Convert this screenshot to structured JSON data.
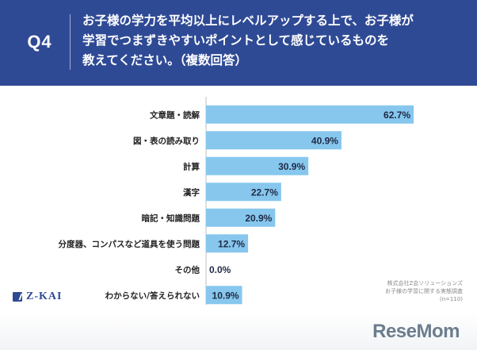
{
  "header": {
    "qnum": "Q4",
    "lines": [
      "お子様の学力を平均以上にレベルアップする上で、お子様が",
      "学習でつまずきやすいポイントとして感じているものを",
      "教えてください。（複数回答）"
    ]
  },
  "colors": {
    "header_bg": "#2f4a95",
    "bar": "#87c7ee"
  },
  "chart_data": {
    "type": "bar",
    "orientation": "horizontal",
    "categories": [
      "文章題・読解",
      "図・表の読み取り",
      "計算",
      "漢字",
      "暗記・知識問題",
      "分度器、コンパスなど道具を使う問題",
      "その他",
      "わからない/答えられない"
    ],
    "values": [
      62.7,
      40.9,
      30.9,
      22.7,
      20.9,
      12.7,
      0.0,
      10.9
    ],
    "value_labels": [
      "62.7%",
      "40.9%",
      "30.9%",
      "22.7%",
      "20.9%",
      "12.7%",
      "0.0%",
      "10.9%"
    ],
    "xlim": [
      0,
      100
    ],
    "grid": false,
    "legend": "none"
  },
  "logo": {
    "text": "Z-KAI",
    "icon": "z-kai-logo-icon"
  },
  "source": {
    "lines": [
      "株式会社Z会ソリューションズ",
      "お子様の学習に関する実態調査",
      "(n=110)"
    ]
  },
  "watermark": {
    "text": "ReseMom"
  }
}
